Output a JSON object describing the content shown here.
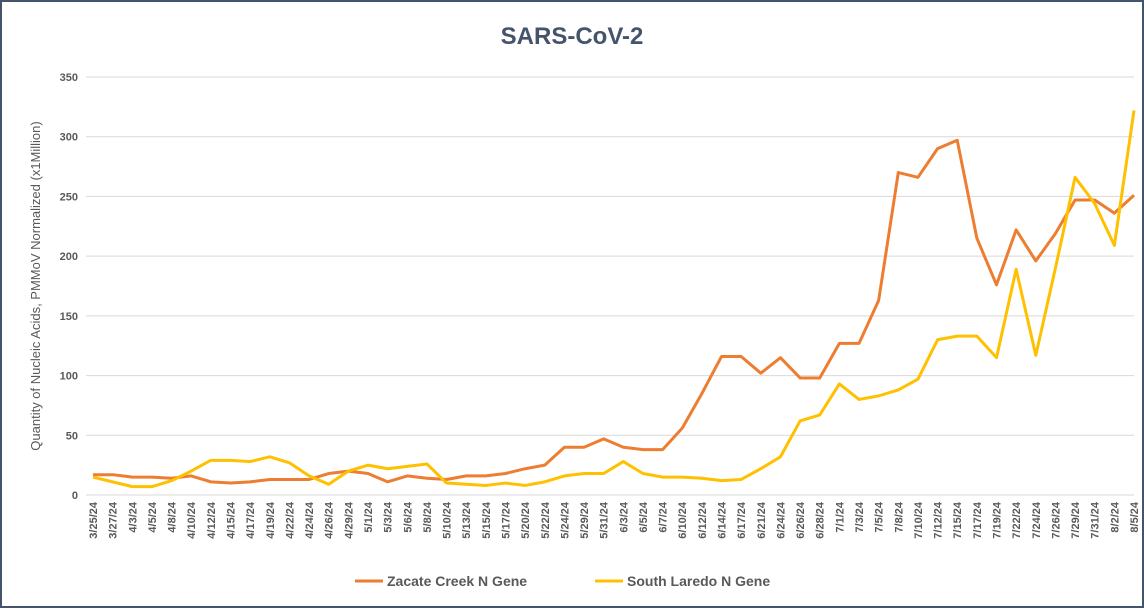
{
  "chart_data": {
    "type": "line",
    "title": "SARS-CoV-2",
    "y_label": "Quantity of Nucleic Acids, PMMoV Normalized (x1Million)",
    "categories": [
      "3/25/24",
      "3/27/24",
      "4/3/24",
      "4/5/24",
      "4/8/24",
      "4/10/24",
      "4/12/24",
      "4/15/24",
      "4/17/24",
      "4/19/24",
      "4/22/24",
      "4/24/24",
      "4/26/24",
      "4/29/24",
      "5/1/24",
      "5/3/24",
      "5/6/24",
      "5/8/24",
      "5/10/24",
      "5/13/24",
      "5/15/24",
      "5/17/24",
      "5/20/24",
      "5/22/24",
      "5/24/24",
      "5/29/24",
      "5/31/24",
      "6/3/24",
      "6/5/24",
      "6/7/24",
      "6/10/24",
      "6/12/24",
      "6/14/24",
      "6/17/24",
      "6/21/24",
      "6/24/24",
      "6/26/24",
      "6/28/24",
      "7/1/24",
      "7/3/24",
      "7/5/24",
      "7/8/24",
      "7/10/24",
      "7/12/24",
      "7/15/24",
      "7/17/24",
      "7/19/24",
      "7/22/24",
      "7/24/24",
      "7/26/24",
      "7/29/24",
      "7/31/24",
      "8/2/24",
      "8/5/24"
    ],
    "series": [
      {
        "name": "Zacate Creek N Gene",
        "color": "#ed7d31",
        "values": [
          17,
          17,
          15,
          15,
          14,
          16,
          11,
          10,
          11,
          13,
          13,
          13,
          18,
          20,
          18,
          11,
          16,
          14,
          13,
          16,
          16,
          18,
          22,
          25,
          40,
          40,
          47,
          40,
          38,
          38,
          56,
          85,
          116,
          116,
          102,
          115,
          98,
          98,
          127,
          127,
          163,
          270,
          266,
          290,
          297,
          215,
          176,
          222,
          196,
          219,
          247,
          247,
          236,
          251
        ]
      },
      {
        "name": "South Laredo N Gene",
        "color": "#ffc000",
        "values": [
          15,
          11,
          7,
          7,
          12,
          20,
          29,
          29,
          28,
          32,
          27,
          16,
          9,
          20,
          25,
          22,
          24,
          26,
          10,
          9,
          8,
          10,
          8,
          11,
          16,
          18,
          18,
          28,
          18,
          15,
          15,
          14,
          12,
          13,
          22,
          32,
          62,
          67,
          93,
          80,
          83,
          88,
          97,
          130,
          133,
          133,
          115,
          189,
          117,
          190,
          266,
          244,
          209,
          322
        ]
      }
    ],
    "ylim": [
      0,
      350
    ],
    "yticks": [
      0,
      50,
      100,
      150,
      200,
      250,
      300,
      350
    ],
    "grid": true,
    "legend": "bottom"
  }
}
